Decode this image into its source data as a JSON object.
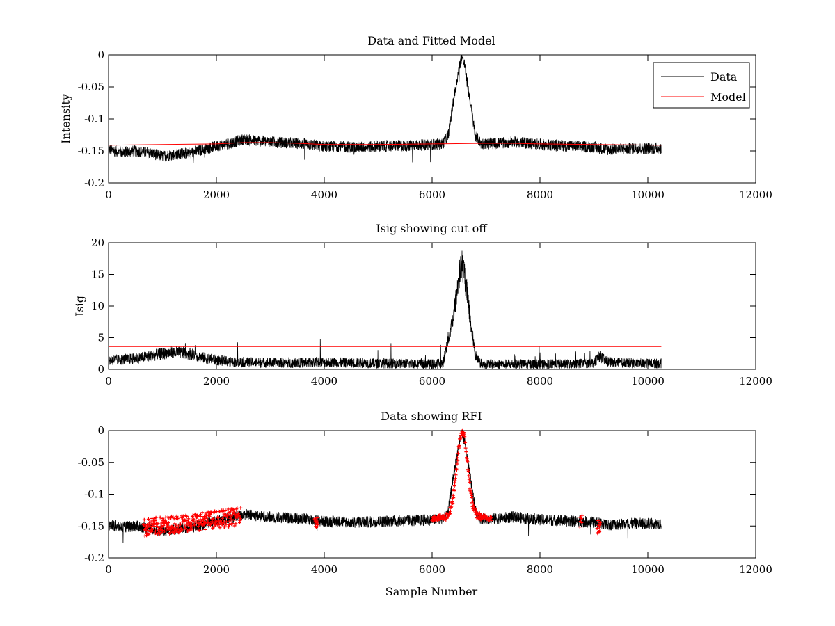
{
  "figure": {
    "background": "#ffffff",
    "data_color": "#000000",
    "model_color": "#ff0000",
    "rfi_color": "#ff0000"
  },
  "chart_data": [
    {
      "type": "line",
      "title": "Data and Fitted Model",
      "xlabel": "",
      "ylabel": "Intensity",
      "xlim": [
        0,
        12000
      ],
      "ylim": [
        -0.2,
        0
      ],
      "grid": false,
      "legend": "top-right",
      "xticks": [
        0,
        2000,
        4000,
        6000,
        8000,
        10000,
        12000
      ],
      "xtick_labels": [
        "0",
        "2000",
        "4000",
        "6000",
        "8000",
        "10000",
        "12000"
      ],
      "yticks": [
        -0.2,
        -0.15,
        -0.1,
        -0.05,
        0
      ],
      "ytick_labels": [
        "-0.2",
        "-0.15",
        "-0.1",
        "-0.05",
        "0"
      ],
      "series": [
        {
          "name": "Data",
          "color": "#000000",
          "x": [
            0,
            250,
            500,
            750,
            1000,
            1250,
            1500,
            1750,
            2000,
            2250,
            2500,
            2750,
            3000,
            3250,
            3500,
            3750,
            4000,
            4250,
            4500,
            4750,
            5000,
            5250,
            5500,
            5750,
            6000,
            6200,
            6300,
            6400,
            6500,
            6550,
            6600,
            6700,
            6800,
            6900,
            7000,
            7250,
            7500,
            7750,
            8000,
            8250,
            8500,
            8750,
            9000,
            9250,
            9500,
            9750,
            10000,
            10250
          ],
          "y": [
            -0.148,
            -0.152,
            -0.15,
            -0.153,
            -0.158,
            -0.155,
            -0.153,
            -0.148,
            -0.142,
            -0.138,
            -0.132,
            -0.134,
            -0.136,
            -0.137,
            -0.138,
            -0.14,
            -0.143,
            -0.143,
            -0.144,
            -0.144,
            -0.143,
            -0.142,
            -0.142,
            -0.141,
            -0.14,
            -0.139,
            -0.125,
            -0.07,
            -0.02,
            -0.002,
            -0.015,
            -0.07,
            -0.125,
            -0.138,
            -0.139,
            -0.138,
            -0.136,
            -0.138,
            -0.14,
            -0.141,
            -0.142,
            -0.143,
            -0.144,
            -0.148,
            -0.147,
            -0.146,
            -0.146,
            -0.146
          ],
          "noise": 0.009
        },
        {
          "name": "Model",
          "color": "#ff0000",
          "x": [
            0,
            1000,
            2000,
            2500,
            3000,
            3500,
            4000,
            5000,
            6000,
            7000,
            7500,
            8000,
            9000,
            10250
          ],
          "y": [
            -0.141,
            -0.14,
            -0.139,
            -0.137,
            -0.137,
            -0.138,
            -0.14,
            -0.14,
            -0.139,
            -0.138,
            -0.138,
            -0.139,
            -0.14,
            -0.141
          ],
          "noise": 0
        }
      ]
    },
    {
      "type": "line",
      "title": "Isig showing cut off",
      "xlabel": "",
      "ylabel": "Isig",
      "xlim": [
        0,
        12000
      ],
      "ylim": [
        0,
        20
      ],
      "grid": false,
      "legend": "none",
      "xticks": [
        0,
        2000,
        4000,
        6000,
        8000,
        10000,
        12000
      ],
      "xtick_labels": [
        "0",
        "2000",
        "4000",
        "6000",
        "8000",
        "10000",
        "12000"
      ],
      "yticks": [
        0,
        5,
        10,
        15,
        20
      ],
      "ytick_labels": [
        "0",
        "5",
        "10",
        "15",
        "20"
      ],
      "series": [
        {
          "name": "Isig",
          "color": "#000000",
          "x": [
            0,
            250,
            500,
            750,
            1000,
            1250,
            1500,
            1750,
            2000,
            2250,
            2500,
            3000,
            3500,
            4000,
            4500,
            5000,
            5500,
            6000,
            6200,
            6300,
            6400,
            6500,
            6550,
            6600,
            6700,
            6800,
            6900,
            7000,
            7500,
            8000,
            8500,
            9000,
            9100,
            9250,
            9500,
            10000,
            10250
          ],
          "y": [
            1.2,
            1.3,
            1.5,
            1.8,
            2.2,
            2.4,
            2.2,
            1.6,
            1.2,
            1.0,
            0.9,
            0.8,
            0.8,
            0.9,
            0.8,
            0.7,
            0.7,
            0.6,
            0.7,
            4.5,
            8.0,
            14.0,
            15.8,
            14.5,
            8.0,
            2.0,
            0.7,
            0.6,
            0.6,
            0.6,
            0.6,
            0.8,
            1.8,
            1.0,
            0.8,
            0.7,
            0.7
          ],
          "noise": 0.7
        },
        {
          "name": "Cut off",
          "color": "#ff0000",
          "x": [
            0,
            10250
          ],
          "y": [
            3.6,
            3.6
          ],
          "noise": 0
        }
      ]
    },
    {
      "type": "scatter",
      "title": "Data showing RFI",
      "xlabel": "Sample Number",
      "ylabel": "",
      "xlim": [
        0,
        12000
      ],
      "ylim": [
        -0.2,
        0
      ],
      "grid": false,
      "legend": "none",
      "xticks": [
        0,
        2000,
        4000,
        6000,
        8000,
        10000,
        12000
      ],
      "xtick_labels": [
        "0",
        "2000",
        "4000",
        "6000",
        "8000",
        "10000",
        "12000"
      ],
      "yticks": [
        -0.2,
        -0.15,
        -0.1,
        -0.05,
        0
      ],
      "ytick_labels": [
        "-0.2",
        "-0.15",
        "-0.1",
        "-0.05",
        "0"
      ],
      "series": [
        {
          "name": "Data",
          "color": "#000000",
          "x": [
            0,
            250,
            500,
            750,
            1000,
            1250,
            1500,
            1750,
            2000,
            2250,
            2500,
            2750,
            3000,
            3250,
            3500,
            3750,
            4000,
            4250,
            4500,
            4750,
            5000,
            5250,
            5500,
            5750,
            6000,
            6200,
            6300,
            6400,
            6500,
            6550,
            6600,
            6700,
            6800,
            6900,
            7000,
            7250,
            7500,
            7750,
            8000,
            8250,
            8500,
            8750,
            9000,
            9250,
            9500,
            9750,
            10000,
            10250
          ],
          "y": [
            -0.148,
            -0.152,
            -0.15,
            -0.153,
            -0.158,
            -0.155,
            -0.153,
            -0.148,
            -0.142,
            -0.138,
            -0.132,
            -0.134,
            -0.136,
            -0.137,
            -0.138,
            -0.14,
            -0.143,
            -0.143,
            -0.144,
            -0.144,
            -0.143,
            -0.142,
            -0.142,
            -0.141,
            -0.14,
            -0.139,
            -0.125,
            -0.07,
            -0.02,
            -0.002,
            -0.015,
            -0.07,
            -0.125,
            -0.138,
            -0.139,
            -0.138,
            -0.136,
            -0.138,
            -0.14,
            -0.141,
            -0.142,
            -0.143,
            -0.144,
            -0.148,
            -0.147,
            -0.146,
            -0.146,
            -0.146
          ],
          "noise": 0.009
        },
        {
          "name": "RFI",
          "color": "#ff0000",
          "marker": "+",
          "clusters": [
            {
              "x": [
                650,
                2450
              ],
              "y_center": [
                -0.153,
                -0.135
              ],
              "spread": 0.014
            },
            {
              "x": [
                3820,
                3880
              ],
              "y_center": [
                -0.145,
                -0.145
              ],
              "spread": 0.008
            },
            {
              "x": [
                6000,
                6250
              ],
              "y_center": [
                -0.138,
                -0.136
              ],
              "spread": 0.004
            },
            {
              "x": [
                6250,
                6900
              ],
              "peak": {
                "x": 6560,
                "y": -0.002
              },
              "base": -0.136,
              "spread": 0.006
            },
            {
              "x": [
                6900,
                7100
              ],
              "y_center": [
                -0.136,
                -0.138
              ],
              "spread": 0.004
            },
            {
              "x": [
                8740,
                8780
              ],
              "y_center": [
                -0.142,
                -0.142
              ],
              "spread": 0.012
            },
            {
              "x": [
                9060,
                9120
              ],
              "y_center": [
                -0.152,
                -0.152
              ],
              "spread": 0.012
            }
          ]
        }
      ]
    }
  ]
}
